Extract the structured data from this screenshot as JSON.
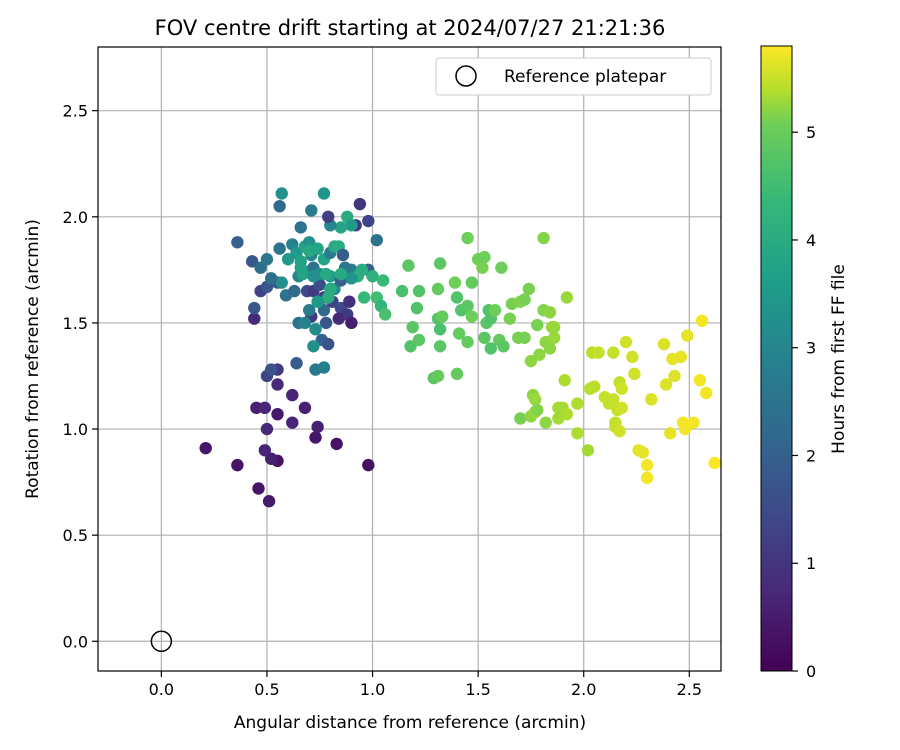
{
  "chart_data": {
    "type": "scatter",
    "title": "FOV centre drift starting at 2024/07/27 21:21:36",
    "xlabel": "Angular distance from reference (arcmin)",
    "ylabel": "Rotation from reference (arcmin)",
    "xlim": [
      -0.3,
      2.65
    ],
    "ylim": [
      -0.14,
      2.8
    ],
    "xticks": [
      0.0,
      0.5,
      1.0,
      1.5,
      2.0,
      2.5
    ],
    "xtick_labels": [
      "0.0",
      "0.5",
      "1.0",
      "1.5",
      "2.0",
      "2.5"
    ],
    "yticks": [
      0.0,
      0.5,
      1.0,
      1.5,
      2.0,
      2.5
    ],
    "ytick_labels": [
      "0.0",
      "0.5",
      "1.0",
      "1.5",
      "2.0",
      "2.5"
    ],
    "grid": true,
    "legend": {
      "position": "top-right",
      "entries": [
        "Reference platepar"
      ]
    },
    "reference_point": {
      "x": 0.0,
      "y": 0.0,
      "name": "Reference platepar"
    },
    "colorbar": {
      "label": "Hours from first FF file",
      "range": [
        0,
        5.8
      ],
      "ticks": [
        0,
        1,
        2,
        3,
        4,
        5
      ],
      "tick_labels": [
        "0",
        "1",
        "2",
        "3",
        "4",
        "5"
      ],
      "colormap": "viridis"
    },
    "series": [
      {
        "color_by": "hours",
        "points": [
          [
            0.21,
            0.91,
            0.35
          ],
          [
            0.36,
            0.83,
            0.3
          ],
          [
            0.46,
            0.72,
            0.35
          ],
          [
            0.51,
            0.66,
            0.4
          ],
          [
            0.55,
            0.85,
            0.3
          ],
          [
            0.52,
            0.86,
            0.5
          ],
          [
            0.49,
            0.9,
            0.6
          ],
          [
            0.5,
            1.0,
            0.7
          ],
          [
            0.45,
            1.1,
            0.55
          ],
          [
            0.49,
            1.1,
            0.6
          ],
          [
            0.55,
            1.07,
            0.4
          ],
          [
            0.62,
            1.03,
            0.6
          ],
          [
            0.68,
            1.1,
            0.55
          ],
          [
            0.73,
            0.96,
            0.35
          ],
          [
            0.74,
            1.01,
            0.5
          ],
          [
            0.83,
            0.93,
            0.3
          ],
          [
            0.98,
            0.83,
            0.25
          ],
          [
            0.55,
            1.21,
            0.7
          ],
          [
            0.62,
            1.16,
            0.6
          ],
          [
            0.55,
            1.28,
            1.0
          ],
          [
            0.5,
            1.25,
            1.2
          ],
          [
            0.52,
            1.28,
            1.5
          ],
          [
            0.64,
            1.31,
            1.7
          ],
          [
            0.73,
            1.28,
            2.3
          ],
          [
            0.77,
            1.29,
            2.5
          ],
          [
            0.76,
            1.42,
            1.8
          ],
          [
            0.78,
            1.5,
            1.6
          ],
          [
            0.77,
            1.56,
            2.0
          ],
          [
            0.79,
            1.4,
            1.5
          ],
          [
            0.72,
            1.39,
            2.9
          ],
          [
            0.71,
            1.53,
            1.0
          ],
          [
            0.73,
            1.47,
            2.8
          ],
          [
            0.65,
            1.5,
            2.2
          ],
          [
            0.68,
            1.5,
            2.6
          ],
          [
            0.7,
            1.56,
            2.4
          ],
          [
            0.44,
            1.52,
            0.7
          ],
          [
            0.44,
            1.57,
            1.6
          ],
          [
            0.47,
            1.65,
            1.2
          ],
          [
            0.5,
            1.67,
            1.6
          ],
          [
            0.55,
            1.69,
            1.6
          ],
          [
            0.57,
            1.69,
            2.9
          ],
          [
            0.59,
            1.63,
            2.2
          ],
          [
            0.63,
            1.65,
            2.0
          ],
          [
            0.65,
            1.72,
            2.7
          ],
          [
            0.69,
            1.74,
            3.0
          ],
          [
            0.69,
            1.65,
            1.3
          ],
          [
            0.72,
            1.65,
            1.0
          ],
          [
            0.75,
            1.68,
            1.4
          ],
          [
            0.77,
            1.62,
            1.1
          ],
          [
            0.81,
            1.6,
            1.2
          ],
          [
            0.85,
            1.57,
            1.3
          ],
          [
            0.89,
            1.6,
            0.8
          ],
          [
            0.88,
            1.54,
            1.0
          ],
          [
            0.84,
            1.52,
            0.7
          ],
          [
            0.9,
            1.5,
            0.5
          ],
          [
            0.82,
            1.66,
            2.8
          ],
          [
            0.8,
            1.72,
            3.2
          ],
          [
            0.85,
            1.7,
            1.8
          ],
          [
            0.9,
            1.75,
            2.5
          ],
          [
            0.93,
            1.72,
            3.7
          ],
          [
            0.98,
            1.75,
            1.8
          ],
          [
            0.96,
            1.62,
            3.9
          ],
          [
            1.02,
            1.62,
            4.0
          ],
          [
            1.04,
            1.58,
            3.8
          ],
          [
            1.06,
            1.54,
            4.1
          ],
          [
            1.05,
            1.7,
            3.9
          ],
          [
            1.0,
            1.72,
            3.7
          ],
          [
            0.95,
            1.75,
            3.6
          ],
          [
            0.98,
            1.98,
            1.2
          ],
          [
            1.02,
            1.89,
            2.2
          ],
          [
            0.94,
            2.06,
            0.9
          ],
          [
            0.92,
            1.96,
            1.0
          ],
          [
            0.88,
            2.0,
            3.6
          ],
          [
            0.9,
            1.96,
            3.2
          ],
          [
            0.85,
            1.95,
            3.4
          ],
          [
            0.8,
            1.96,
            2.7
          ],
          [
            0.79,
            2.0,
            1.1
          ],
          [
            0.77,
            2.11,
            3.0
          ],
          [
            0.71,
            2.03,
            2.4
          ],
          [
            0.66,
            1.95,
            2.2
          ],
          [
            0.56,
            2.05,
            2.0
          ],
          [
            0.57,
            2.11,
            2.9
          ],
          [
            0.36,
            1.88,
            1.8
          ],
          [
            0.43,
            1.79,
            1.6
          ],
          [
            0.47,
            1.76,
            2.1
          ],
          [
            0.5,
            1.8,
            2.3
          ],
          [
            0.52,
            1.71,
            2.1
          ],
          [
            0.56,
            1.85,
            2.2
          ],
          [
            0.6,
            1.8,
            3.1
          ],
          [
            0.62,
            1.87,
            2.6
          ],
          [
            0.64,
            1.83,
            3.1
          ],
          [
            0.66,
            1.79,
            3.3
          ],
          [
            0.68,
            1.86,
            3.3
          ],
          [
            0.7,
            1.88,
            2.9
          ],
          [
            0.71,
            1.82,
            2.7
          ],
          [
            0.72,
            1.76,
            2.2
          ],
          [
            0.75,
            1.73,
            2.8
          ],
          [
            0.77,
            1.8,
            3.4
          ],
          [
            0.8,
            1.83,
            2.4
          ],
          [
            0.82,
            1.86,
            3.5
          ],
          [
            0.84,
            1.86,
            3.6
          ],
          [
            0.86,
            1.82,
            1.7
          ],
          [
            0.87,
            1.76,
            2.3
          ],
          [
            0.9,
            1.71,
            3.0
          ],
          [
            0.67,
            1.73,
            3.4
          ],
          [
            0.66,
            1.76,
            3.3
          ],
          [
            0.7,
            1.84,
            3.5
          ],
          [
            0.74,
            1.85,
            3.4
          ],
          [
            0.78,
            1.73,
            3.5
          ],
          [
            0.85,
            1.73,
            3.5
          ],
          [
            0.8,
            1.66,
            3.5
          ],
          [
            0.79,
            1.62,
            3.6
          ],
          [
            0.74,
            1.6,
            3.1
          ],
          [
            0.72,
            1.72,
            2.9
          ],
          [
            1.14,
            1.65,
            4.1
          ],
          [
            1.17,
            1.77,
            4.3
          ],
          [
            1.19,
            1.48,
            4.3
          ],
          [
            1.18,
            1.39,
            4.2
          ],
          [
            1.21,
            1.57,
            4.2
          ],
          [
            1.22,
            1.65,
            4.2
          ],
          [
            1.22,
            1.42,
            4.3
          ],
          [
            1.29,
            1.24,
            4.3
          ],
          [
            1.31,
            1.25,
            4.4
          ],
          [
            1.32,
            1.39,
            4.3
          ],
          [
            1.32,
            1.47,
            4.1
          ],
          [
            1.31,
            1.52,
            4.2
          ],
          [
            1.33,
            1.53,
            4.4
          ],
          [
            1.31,
            1.66,
            4.4
          ],
          [
            1.32,
            1.78,
            4.3
          ],
          [
            1.39,
            1.69,
            4.5
          ],
          [
            1.4,
            1.62,
            4.2
          ],
          [
            1.42,
            1.56,
            4.2
          ],
          [
            1.41,
            1.45,
            4.4
          ],
          [
            1.4,
            1.26,
            4.4
          ],
          [
            1.45,
            1.41,
            4.4
          ],
          [
            1.45,
            1.58,
            4.3
          ],
          [
            1.47,
            1.53,
            4.5
          ],
          [
            1.47,
            1.69,
            4.4
          ],
          [
            1.45,
            1.9,
            4.5
          ],
          [
            1.5,
            1.8,
            4.5
          ],
          [
            1.52,
            1.76,
            4.6
          ],
          [
            1.53,
            1.81,
            4.5
          ],
          [
            1.53,
            1.43,
            4.3
          ],
          [
            1.54,
            1.5,
            4.3
          ],
          [
            1.55,
            1.56,
            4.2
          ],
          [
            1.56,
            1.52,
            4.2
          ],
          [
            1.58,
            1.56,
            4.5
          ],
          [
            1.56,
            1.38,
            4.2
          ],
          [
            1.6,
            1.42,
            4.4
          ],
          [
            1.61,
            1.76,
            4.5
          ],
          [
            1.62,
            1.39,
            4.3
          ],
          [
            1.65,
            1.52,
            4.6
          ],
          [
            1.66,
            1.59,
            4.6
          ],
          [
            1.69,
            1.43,
            4.6
          ],
          [
            1.7,
            1.05,
            4.6
          ],
          [
            1.72,
            1.43,
            4.6
          ],
          [
            1.7,
            1.6,
            4.7
          ],
          [
            1.72,
            1.61,
            4.6
          ],
          [
            1.74,
            1.66,
            4.6
          ],
          [
            1.75,
            1.32,
            4.8
          ],
          [
            1.75,
            1.06,
            4.8
          ],
          [
            1.76,
            1.16,
            4.8
          ],
          [
            1.77,
            1.08,
            4.9
          ],
          [
            1.77,
            1.14,
            4.9
          ],
          [
            1.78,
            1.09,
            4.7
          ],
          [
            1.79,
            1.35,
            4.8
          ],
          [
            1.78,
            1.49,
            4.6
          ],
          [
            1.81,
            1.9,
            4.7
          ],
          [
            1.81,
            1.56,
            4.7
          ],
          [
            1.82,
            1.41,
            4.8
          ],
          [
            1.82,
            1.03,
            4.8
          ],
          [
            1.84,
            1.38,
            4.8
          ],
          [
            1.84,
            1.55,
            4.8
          ],
          [
            1.85,
            1.48,
            4.9
          ],
          [
            1.86,
            1.48,
            4.9
          ],
          [
            1.86,
            1.43,
            4.9
          ],
          [
            1.88,
            1.1,
            5.0
          ],
          [
            1.88,
            1.05,
            5.0
          ],
          [
            1.9,
            1.1,
            5.0
          ],
          [
            1.91,
            1.23,
            5.1
          ],
          [
            1.92,
            1.07,
            5.1
          ],
          [
            1.92,
            1.62,
            4.9
          ],
          [
            1.97,
            0.98,
            5.1
          ],
          [
            1.97,
            1.12,
            5.1
          ],
          [
            2.02,
            0.9,
            5.0
          ],
          [
            2.03,
            1.19,
            5.2
          ],
          [
            2.04,
            1.36,
            5.2
          ],
          [
            2.05,
            1.2,
            5.2
          ],
          [
            2.07,
            1.36,
            5.3
          ],
          [
            2.1,
            1.15,
            5.3
          ],
          [
            2.12,
            1.12,
            5.3
          ],
          [
            2.14,
            1.14,
            5.3
          ],
          [
            2.14,
            1.36,
            5.3
          ],
          [
            2.15,
            1.03,
            5.3
          ],
          [
            2.15,
            1.01,
            5.3
          ],
          [
            2.16,
            1.09,
            5.3
          ],
          [
            2.17,
            1.22,
            5.3
          ],
          [
            2.17,
            0.99,
            5.4
          ],
          [
            2.18,
            1.19,
            5.4
          ],
          [
            2.18,
            1.1,
            5.4
          ],
          [
            2.2,
            1.41,
            5.4
          ],
          [
            2.23,
            1.34,
            5.4
          ],
          [
            2.24,
            1.26,
            5.4
          ],
          [
            2.26,
            0.9,
            5.6
          ],
          [
            2.28,
            0.89,
            5.6
          ],
          [
            2.3,
            0.83,
            5.7
          ],
          [
            2.3,
            0.77,
            5.7
          ],
          [
            2.32,
            1.14,
            5.5
          ],
          [
            2.38,
            1.4,
            5.5
          ],
          [
            2.39,
            1.21,
            5.5
          ],
          [
            2.41,
            0.98,
            5.6
          ],
          [
            2.42,
            1.33,
            5.6
          ],
          [
            2.43,
            1.25,
            5.5
          ],
          [
            2.46,
            1.34,
            5.6
          ],
          [
            2.47,
            1.03,
            5.7
          ],
          [
            2.48,
            1.0,
            5.7
          ],
          [
            2.49,
            1.44,
            5.6
          ],
          [
            2.52,
            1.03,
            5.7
          ],
          [
            2.55,
            1.23,
            5.7
          ],
          [
            2.56,
            1.51,
            5.7
          ],
          [
            2.58,
            1.17,
            5.7
          ],
          [
            2.62,
            0.84,
            5.8
          ]
        ]
      }
    ]
  }
}
